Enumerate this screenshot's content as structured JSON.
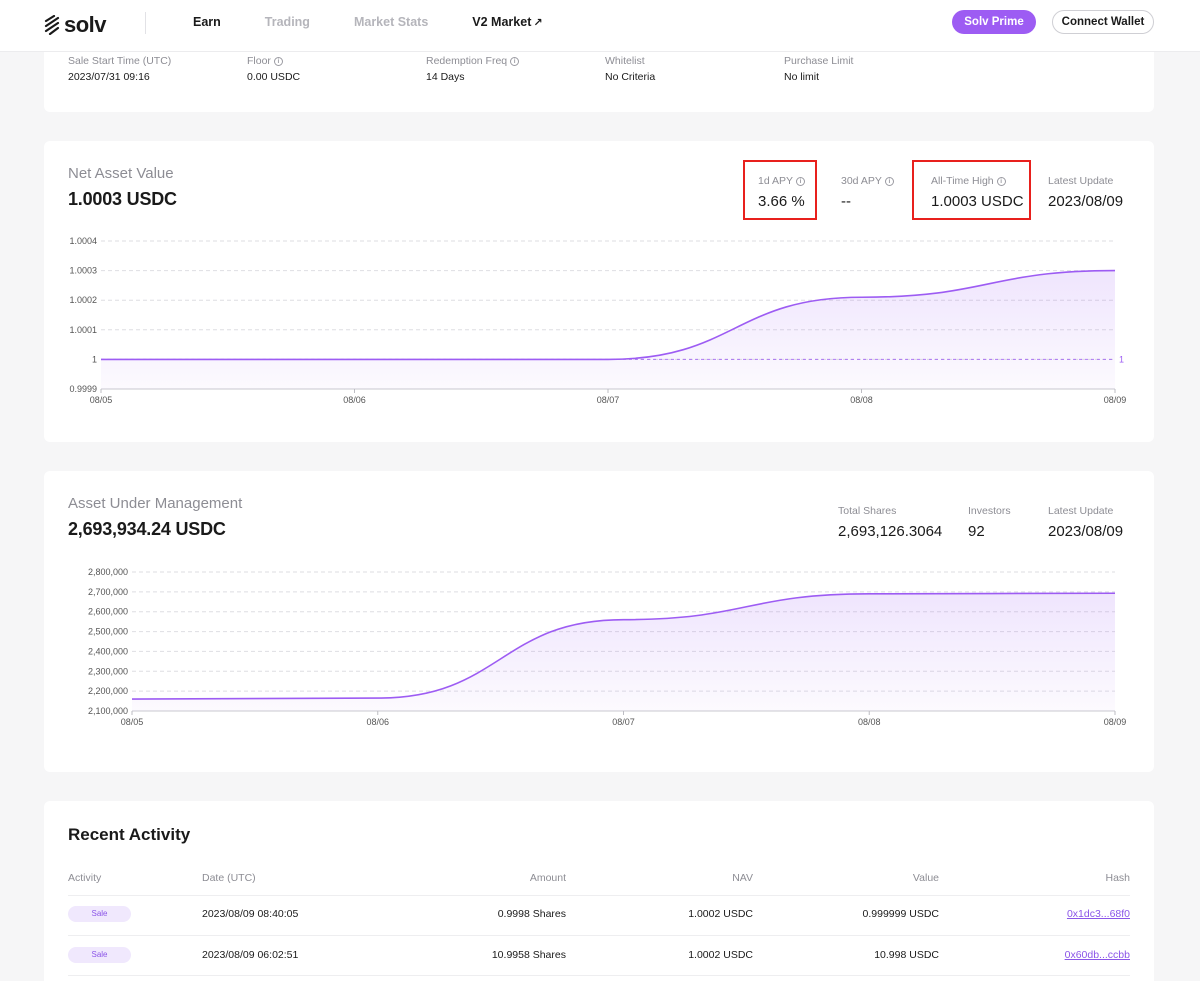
{
  "header": {
    "logo_text": "solv",
    "nav": [
      {
        "label": "Earn",
        "active": true
      },
      {
        "label": "Trading",
        "active": false
      },
      {
        "label": "Market Stats",
        "active": false
      },
      {
        "label": "V2 Market",
        "active": true,
        "external": true
      }
    ],
    "external_glyph": "↗",
    "prime_label": "Solv Prime",
    "wallet_label": "Connect Wallet"
  },
  "info": {
    "items": [
      {
        "label": "Sale Start Time (UTC)",
        "value": "2023/07/31 09:16",
        "info": false
      },
      {
        "label": "Floor",
        "value": "0.00 USDC",
        "info": true
      },
      {
        "label": "Redemption Freq",
        "value": "14 Days",
        "info": true
      },
      {
        "label": "Whitelist",
        "value": "No Criteria",
        "info": false
      },
      {
        "label": "Purchase Limit",
        "value": "No limit",
        "info": false
      }
    ]
  },
  "nav_section": {
    "title": "Net Asset Value",
    "value": "1.0003 USDC",
    "stats": [
      {
        "label": "1d APY",
        "value": "3.66 %",
        "info": true
      },
      {
        "label": "30d APY",
        "value": "--",
        "info": true
      },
      {
        "label": "All-Time High",
        "value": "1.0003 USDC",
        "info": true
      },
      {
        "label": "Latest Update",
        "value": "2023/08/09",
        "info": false
      }
    ]
  },
  "aum_section": {
    "title": "Asset Under Management",
    "value": "2,693,934.24 USDC",
    "stats": [
      {
        "label": "Total Shares",
        "value": "2,693,126.3064"
      },
      {
        "label": "Investors",
        "value": "92"
      },
      {
        "label": "Latest Update",
        "value": "2023/08/09"
      }
    ]
  },
  "chart_data": [
    {
      "type": "area",
      "x": [
        "08/05",
        "08/06",
        "08/07",
        "08/08",
        "08/09"
      ],
      "y_ticks": [
        "0.9999",
        "1",
        "1.0001",
        "1.0002",
        "1.0003",
        "1.0004"
      ],
      "ylim": [
        0.9999,
        1.0004
      ],
      "series": [
        {
          "values": [
            1.0,
            1.0,
            1.0,
            1.00021,
            1.0003
          ]
        }
      ],
      "reference_line": {
        "value": 1,
        "label": "1"
      },
      "color": "#9d5cf3",
      "grid": true
    },
    {
      "type": "area",
      "x": [
        "08/05",
        "08/06",
        "08/07",
        "08/08",
        "08/09"
      ],
      "y_ticks": [
        "2,100,000",
        "2,200,000",
        "2,300,000",
        "2,400,000",
        "2,500,000",
        "2,600,000",
        "2,700,000",
        "2,800,000"
      ],
      "ylim": [
        2100000,
        2800000
      ],
      "series": [
        {
          "values": [
            2160000,
            2165000,
            2560000,
            2690000,
            2693000
          ]
        }
      ],
      "color": "#9d5cf3",
      "grid": true
    }
  ],
  "activity": {
    "title": "Recent Activity",
    "columns": [
      "Activity",
      "Date (UTC)",
      "Amount",
      "NAV",
      "Value",
      "Hash"
    ],
    "rows": [
      {
        "activity": "Sale",
        "date": "2023/08/09 08:40:05",
        "amount": "0.9998 Shares",
        "nav": "1.0002 USDC",
        "value": "0.999999 USDC",
        "hash": "0x1dc3...68f0"
      },
      {
        "activity": "Sale",
        "date": "2023/08/09 06:02:51",
        "amount": "10.9958 Shares",
        "nav": "1.0002 USDC",
        "value": "10.998 USDC",
        "hash": "0x60db...ccbb"
      }
    ]
  }
}
